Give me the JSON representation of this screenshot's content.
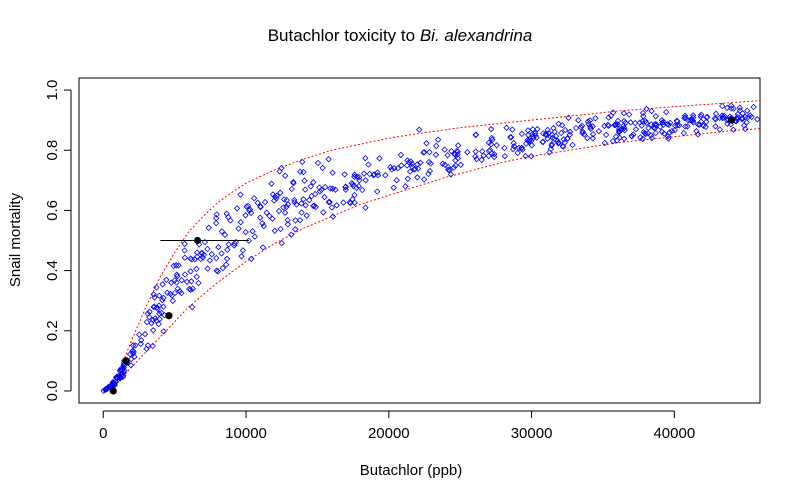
{
  "chart_data": {
    "type": "scatter",
    "title": "Butachlor toxicity to",
    "title_italic": "Bi. alexandrina",
    "xlabel": "Butachlor (ppb)",
    "ylabel": "Snail mortality",
    "xlim": [
      -1700,
      46000
    ],
    "ylim": [
      -0.04,
      1.04
    ],
    "x_ticks": [
      0,
      10000,
      20000,
      30000,
      40000
    ],
    "x_tick_labels": [
      "0",
      "10000",
      "20000",
      "30000",
      "40000"
    ],
    "y_ticks": [
      0.0,
      0.2,
      0.4,
      0.6,
      0.8,
      1.0
    ],
    "y_tick_labels": [
      "0.0",
      "0.2",
      "0.4",
      "0.6",
      "0.8",
      "1.0"
    ],
    "grid": false,
    "colors": {
      "scatter": "#0000ff",
      "bands": "#ff0000",
      "observed": "#000000",
      "lc50_segment": "#000000"
    },
    "observed_points": [
      {
        "x": 700,
        "y": 0.0
      },
      {
        "x": 1600,
        "y": 0.1
      },
      {
        "x": 4600,
        "y": 0.25
      },
      {
        "x": 6600,
        "y": 0.5
      },
      {
        "x": 44000,
        "y": 0.9
      }
    ],
    "lc50_segment": {
      "x_from": 4000,
      "x_to": 10200,
      "y": 0.5
    },
    "upper_band": [
      [
        0,
        0.0
      ],
      [
        500,
        0.02
      ],
      [
        1000,
        0.06
      ],
      [
        1500,
        0.11
      ],
      [
        2000,
        0.17
      ],
      [
        3000,
        0.28
      ],
      [
        4000,
        0.38
      ],
      [
        5000,
        0.46
      ],
      [
        6000,
        0.53
      ],
      [
        7000,
        0.58
      ],
      [
        8000,
        0.625
      ],
      [
        9000,
        0.66
      ],
      [
        10000,
        0.69
      ],
      [
        12000,
        0.735
      ],
      [
        14000,
        0.77
      ],
      [
        16000,
        0.8
      ],
      [
        18000,
        0.82
      ],
      [
        20000,
        0.84
      ],
      [
        22000,
        0.855
      ],
      [
        25000,
        0.875
      ],
      [
        28000,
        0.89
      ],
      [
        30000,
        0.9
      ],
      [
        33000,
        0.915
      ],
      [
        36000,
        0.93
      ],
      [
        40000,
        0.945
      ],
      [
        44000,
        0.958
      ],
      [
        46000,
        0.965
      ]
    ],
    "lower_band": [
      [
        0,
        0.0
      ],
      [
        500,
        0.01
      ],
      [
        1000,
        0.03
      ],
      [
        2000,
        0.08
      ],
      [
        3000,
        0.13
      ],
      [
        4000,
        0.18
      ],
      [
        5000,
        0.23
      ],
      [
        6000,
        0.28
      ],
      [
        7000,
        0.32
      ],
      [
        8000,
        0.36
      ],
      [
        10000,
        0.43
      ],
      [
        12000,
        0.49
      ],
      [
        14000,
        0.54
      ],
      [
        16000,
        0.58
      ],
      [
        18000,
        0.62
      ],
      [
        20000,
        0.65
      ],
      [
        22000,
        0.68
      ],
      [
        24000,
        0.71
      ],
      [
        26000,
        0.735
      ],
      [
        28000,
        0.76
      ],
      [
        30000,
        0.78
      ],
      [
        32000,
        0.795
      ],
      [
        34000,
        0.81
      ],
      [
        36000,
        0.825
      ],
      [
        38000,
        0.835
      ],
      [
        40000,
        0.845
      ],
      [
        42000,
        0.855
      ],
      [
        44000,
        0.865
      ],
      [
        46000,
        0.872
      ]
    ],
    "scatter_generation": {
      "n": 620,
      "x_range": [
        0,
        46000
      ],
      "note_hidden": true
    }
  }
}
